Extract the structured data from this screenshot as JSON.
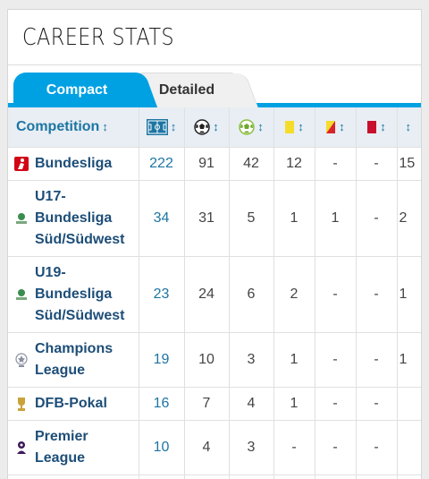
{
  "header": {
    "title": "CAREER STATS"
  },
  "tabs": [
    {
      "label": "Compact",
      "active": true
    },
    {
      "label": "Detailed",
      "active": false
    }
  ],
  "table": {
    "competition_header": "Competition",
    "sort_glyph": "↕",
    "column_icons": [
      "pitch-icon",
      "football-icon",
      "assist-ball-icon",
      "yellow-card-icon",
      "yellow-red-card-icon",
      "red-card-icon"
    ],
    "rows": [
      {
        "competition": "Bundesliga",
        "logo": "bundesliga-logo-icon",
        "appearances": "222",
        "goals": "91",
        "assists": "42",
        "yellow": "12",
        "yellow_red": "-",
        "red": "-",
        "extra": "15"
      },
      {
        "competition": "U17-Bundesliga Süd/Südwest",
        "logo": "dfb-youth-logo-icon",
        "appearances": "34",
        "goals": "31",
        "assists": "5",
        "yellow": "1",
        "yellow_red": "1",
        "red": "-",
        "extra": "2"
      },
      {
        "competition": "U19-Bundesliga Süd/Südwest",
        "logo": "dfb-youth-logo-icon",
        "appearances": "23",
        "goals": "24",
        "assists": "6",
        "yellow": "2",
        "yellow_red": "-",
        "red": "-",
        "extra": "1"
      },
      {
        "competition": "Champions League",
        "logo": "champions-league-logo-icon",
        "appearances": "19",
        "goals": "10",
        "assists": "3",
        "yellow": "1",
        "yellow_red": "-",
        "red": "-",
        "extra": "1"
      },
      {
        "competition": "DFB-Pokal",
        "logo": "dfb-pokal-logo-icon",
        "appearances": "16",
        "goals": "7",
        "assists": "4",
        "yellow": "1",
        "yellow_red": "-",
        "red": "-",
        "extra": ""
      },
      {
        "competition": "Premier League",
        "logo": "premier-league-logo-icon",
        "appearances": "10",
        "goals": "4",
        "assists": "3",
        "yellow": "-",
        "yellow_red": "-",
        "red": "-",
        "extra": ""
      }
    ]
  },
  "colors": {
    "accent": "#00a1e3",
    "link": "#1d75a3",
    "header_bg": "#e8eef4",
    "yellow": "#f5dc2a",
    "red": "#c8102e"
  }
}
